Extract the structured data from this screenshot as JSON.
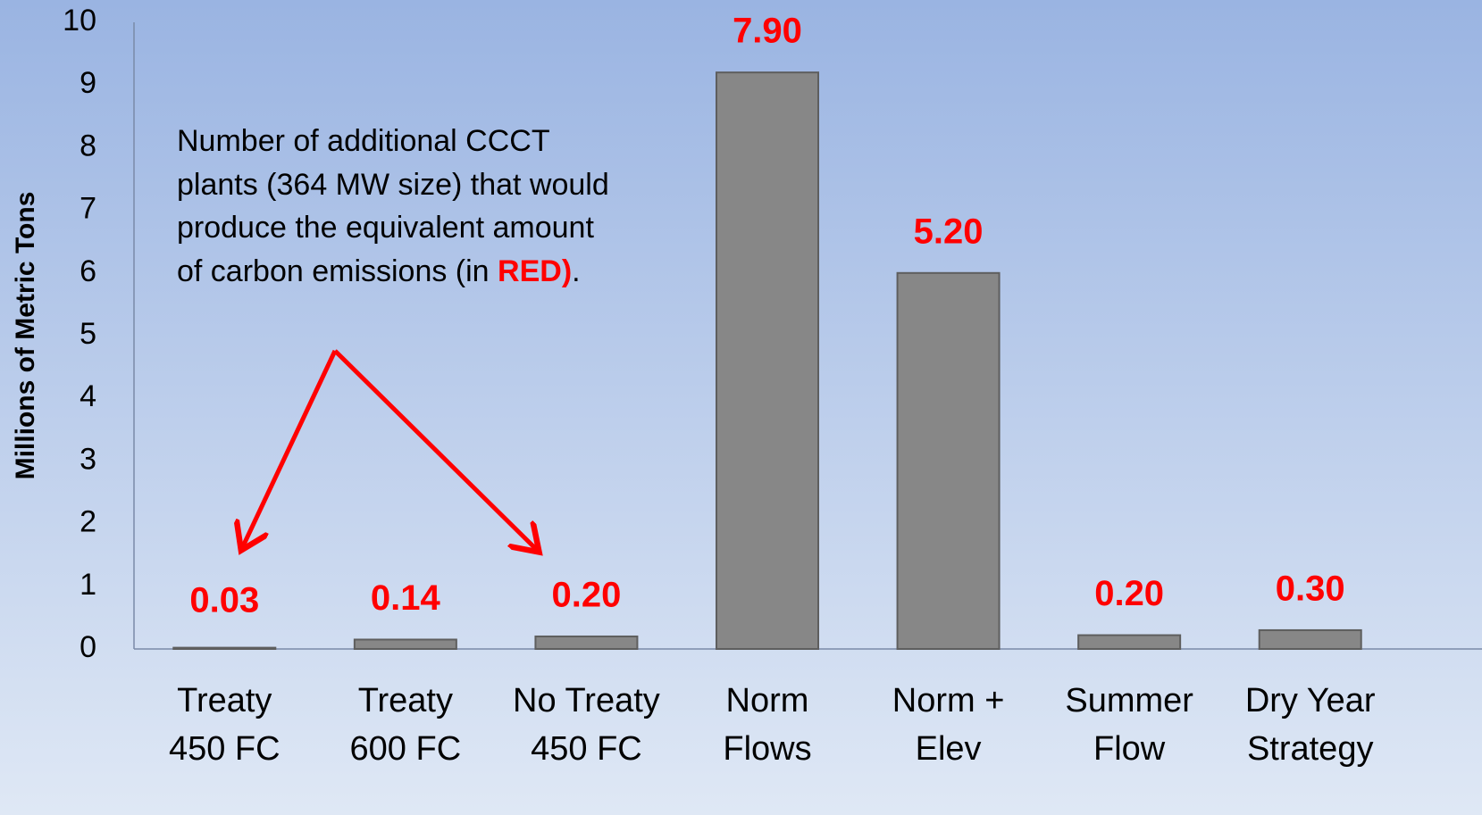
{
  "chart_data": {
    "type": "bar",
    "y_label": "Millions of Metric Tons",
    "categories": [
      [
        "Treaty",
        "450 FC"
      ],
      [
        "Treaty",
        "600 FC"
      ],
      [
        "No Treaty",
        "450 FC"
      ],
      [
        "Norm",
        "Flows"
      ],
      [
        "Norm +",
        "Elev"
      ],
      [
        "Summer",
        "Flow"
      ],
      [
        "Dry Year",
        "Strategy"
      ]
    ],
    "values": [
      0.02,
      0.15,
      0.2,
      9.2,
      6.0,
      0.22,
      0.3
    ],
    "plant_counts": [
      "0.03",
      "0.14",
      "0.20",
      "7.90",
      "5.20",
      "0.20",
      "0.30"
    ],
    "color": "#878787",
    "label_color": "#ff0000",
    "ylim": [
      0,
      10
    ],
    "yticks": [
      0,
      1,
      2,
      3,
      4,
      5,
      6,
      7,
      8,
      9,
      10
    ],
    "annotation": {
      "text": "Number of additional CCCT plants (364 MW size) that would produce the equivalent amount of carbon emissions (in ",
      "emphasis": "RED)",
      "end": "."
    }
  }
}
